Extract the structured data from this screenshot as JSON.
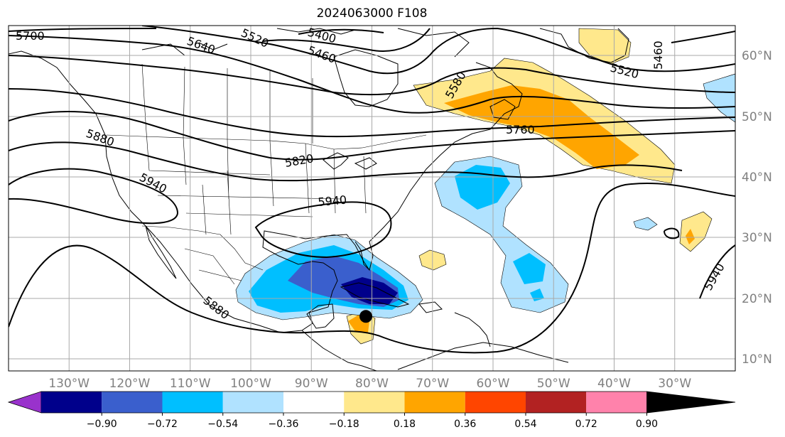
{
  "title": "2024063000 F108",
  "colors": {
    "bins": [
      "#9932cc",
      "#00008b",
      "#3a5fcd",
      "#00bfff",
      "#b0e2ff",
      "#ffffff",
      "#ffe88c",
      "#ffa500",
      "#ff4500",
      "#b22222",
      "#ff82ab"
    ],
    "land_outline": "#000000",
    "grid": "#a9a9a9",
    "contour": "#000000"
  },
  "map": {
    "projection": "PlateCarree",
    "lon_range": [
      -140,
      -20
    ],
    "lat_range": [
      8,
      65
    ],
    "lon_ticks": [
      "130°W",
      "120°W",
      "110°W",
      "100°W",
      "90°W",
      "80°W",
      "70°W",
      "60°W",
      "50°W",
      "40°W",
      "30°W"
    ],
    "lat_ticks": [
      "10°N",
      "20°N",
      "30°N",
      "40°N",
      "50°N",
      "60°N"
    ],
    "contour_labels": [
      "5700",
      "5640",
      "5520",
      "5400",
      "5460",
      "5580",
      "5520",
      "5460",
      "5880",
      "5820",
      "5760",
      "5940",
      "5940",
      "5880",
      "5940"
    ],
    "marker": {
      "name": "storm-position",
      "lon": -81,
      "lat": 17
    }
  },
  "colorbar": {
    "ticks": [
      "−0.90",
      "−0.72",
      "−0.54",
      "−0.36",
      "−0.18",
      "0.18",
      "0.36",
      "0.54",
      "0.72",
      "0.90"
    ],
    "extend": "both"
  }
}
